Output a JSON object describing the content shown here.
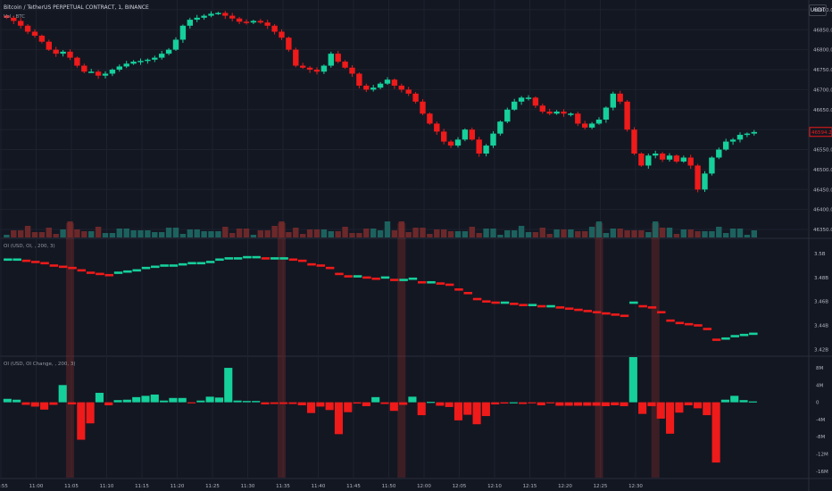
{
  "header": {
    "symbol_title": "Bitcoin / TetherUS PERPETUAL CONTRACT, 1, BINANCE",
    "volume_label": "Vol · BTC",
    "currency_button": "USDT"
  },
  "panes": {
    "oi_label": "OI (USD, OI, , 200, 3)",
    "oi_change_label": "OI (USD, OI Change, , 200, 3)"
  },
  "price_axis": {
    "ticks": [
      "46900.0",
      "46850.0",
      "46800.0",
      "46750.0",
      "46700.0",
      "46650.0",
      "46600.0",
      "46550.0",
      "46500.0",
      "46450.0",
      "46400.0",
      "46350.0"
    ],
    "last_price": "46594.2"
  },
  "oi_axis": {
    "ticks": [
      "3.5B",
      "3.48B",
      "3.46B",
      "3.44B",
      "3.42B"
    ]
  },
  "oi_change_axis": {
    "ticks": [
      "8M",
      "4M",
      "0",
      "-4M",
      "-8M",
      "-12M",
      "-16M"
    ]
  },
  "time_axis": {
    "ticks": [
      "10:55",
      "11:00",
      "11:05",
      "11:10",
      "11:15",
      "11:20",
      "11:25",
      "11:30",
      "11:35",
      "11:40",
      "11:45",
      "11:50",
      "12:00",
      "12:05",
      "12:10",
      "12:15",
      "12:20",
      "12:25",
      "12:30"
    ]
  },
  "colors": {
    "up": "#26a69a",
    "up_bright": "#15d09b",
    "down": "#ef1a1a",
    "background": "#131722",
    "highlight": "#8b2a2a"
  },
  "chart_data": {
    "type": "candlestick",
    "interval": "1m",
    "closes": [
      46880,
      46872,
      46860,
      46845,
      46835,
      46820,
      46800,
      46790,
      46795,
      46780,
      46760,
      46745,
      46745,
      46735,
      46740,
      46750,
      46758,
      46765,
      46770,
      46772,
      46775,
      46780,
      46790,
      46800,
      46825,
      46860,
      46875,
      46880,
      46885,
      46890,
      46892,
      46885,
      46878,
      46870,
      46868,
      46872,
      46868,
      46860,
      46845,
      46830,
      46800,
      46760,
      46755,
      46750,
      46745,
      46760,
      46790,
      46770,
      46755,
      46740,
      46710,
      46700,
      46705,
      46715,
      46725,
      46710,
      46700,
      46690,
      46670,
      46640,
      46615,
      46595,
      46570,
      46560,
      46575,
      46600,
      46575,
      46540,
      46560,
      46590,
      46620,
      46650,
      46670,
      46680,
      46680,
      46660,
      46645,
      46640,
      46645,
      46640,
      46640,
      46615,
      46605,
      46615,
      46625,
      46655,
      46690,
      46670,
      46600,
      46540,
      46510,
      46535,
      46540,
      46525,
      46535,
      46520,
      46530,
      46510,
      46450,
      46490,
      46530,
      46550,
      46570,
      46575,
      46587,
      46590,
      46594
    ],
    "volume_spike_minutes": [
      "11:04",
      "11:34",
      "11:49",
      "11:51",
      "12:19",
      "12:27"
    ],
    "open_interest_usd_billions": [
      3.495,
      3.495,
      3.494,
      3.493,
      3.492,
      3.49,
      3.489,
      3.488,
      3.486,
      3.484,
      3.483,
      3.482,
      3.484,
      3.485,
      3.486,
      3.488,
      3.489,
      3.49,
      3.49,
      3.491,
      3.492,
      3.492,
      3.493,
      3.495,
      3.496,
      3.496,
      3.497,
      3.497,
      3.496,
      3.496,
      3.496,
      3.495,
      3.494,
      3.491,
      3.49,
      3.488,
      3.483,
      3.481,
      3.481,
      3.48,
      3.479,
      3.48,
      3.478,
      3.478,
      3.479,
      3.476,
      3.476,
      3.475,
      3.474,
      3.47,
      3.467,
      3.462,
      3.46,
      3.459,
      3.459,
      3.458,
      3.457,
      3.457,
      3.456,
      3.456,
      3.455,
      3.454,
      3.453,
      3.452,
      3.451,
      3.45,
      3.449,
      3.448,
      3.459,
      3.456,
      3.455,
      3.451,
      3.444,
      3.442,
      3.441,
      3.44,
      3.437,
      3.428,
      3.429,
      3.431,
      3.432,
      3.433
    ],
    "oi_change_millions": [
      0.8,
      0.6,
      -0.6,
      -1.0,
      -1.7,
      -0.6,
      4.0,
      -0.5,
      -8.7,
      -4.9,
      2.2,
      -0.7,
      0.5,
      0.6,
      1.2,
      1.5,
      1.8,
      0.4,
      1.0,
      1.0,
      -0.2,
      0.4,
      1.3,
      1.1,
      8.0,
      0.4,
      0.3,
      0.3,
      -0.5,
      -0.4,
      -0.4,
      -0.4,
      -0.7,
      -2.5,
      -1.0,
      -1.8,
      -7.4,
      -2.3,
      -0.3,
      -0.9,
      1.2,
      -0.4,
      -2.0,
      -0.6,
      1.3,
      -3.0,
      0.1,
      -0.8,
      -1.1,
      -4.2,
      -2.9,
      -5.1,
      -3.2,
      -0.5,
      -0.3,
      0.0,
      -0.4,
      -0.2,
      -0.7,
      -0.1,
      -0.8,
      -0.8,
      -0.8,
      -0.8,
      -0.8,
      -0.9,
      -0.7,
      -0.9,
      10.5,
      -2.7,
      -0.9,
      -3.8,
      -7.3,
      -2.4,
      -0.7,
      -1.4,
      -3.0,
      -14.0,
      0.6,
      1.5,
      0.5,
      0.2
    ],
    "highlighted_minutes": [
      "11:04",
      "11:34",
      "11:51",
      "12:19",
      "12:27"
    ]
  }
}
